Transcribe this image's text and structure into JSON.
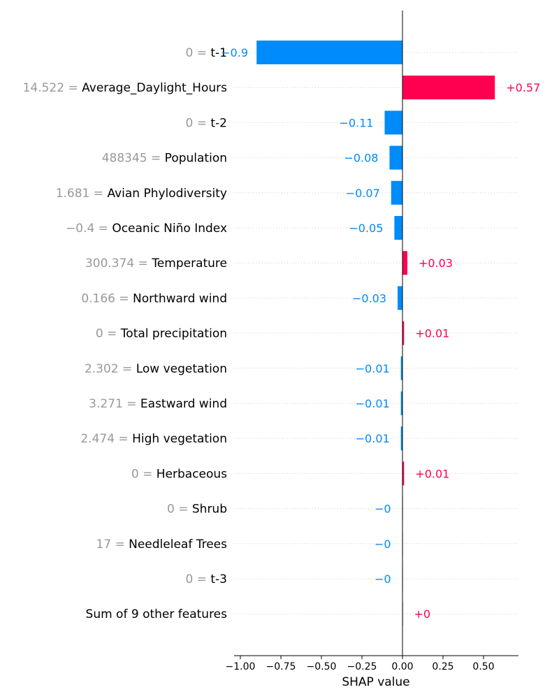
{
  "chart_data": {
    "type": "bar",
    "orientation": "horizontal",
    "xlabel": "SHAP value",
    "xlim": [
      -1.05,
      0.72
    ],
    "x_ticks": [
      -1.0,
      -0.75,
      -0.5,
      -0.25,
      0.0,
      0.25,
      0.5
    ],
    "x_tick_labels": [
      "−1.00",
      "−0.75",
      "−0.50",
      "−0.25",
      "0.00",
      "0.25",
      "0.50"
    ],
    "grid": "horizontal dotted",
    "colors": {
      "positive": "#ff0051",
      "negative": "#008bfb"
    },
    "rows": [
      {
        "feature_value": "0",
        "feature": "t-1",
        "value": -0.9,
        "label": "−0.9"
      },
      {
        "feature_value": "14.522",
        "feature": "Average_Daylight_Hours",
        "value": 0.57,
        "label": "+0.57"
      },
      {
        "feature_value": "0",
        "feature": "t-2",
        "value": -0.11,
        "label": "−0.11"
      },
      {
        "feature_value": "488345",
        "feature": "Population",
        "value": -0.08,
        "label": "−0.08"
      },
      {
        "feature_value": "1.681",
        "feature": "Avian Phylodiversity",
        "value": -0.07,
        "label": "−0.07"
      },
      {
        "feature_value": "−0.4",
        "feature": "Oceanic Niño Index",
        "value": -0.05,
        "label": "−0.05"
      },
      {
        "feature_value": "300.374",
        "feature": "Temperature",
        "value": 0.03,
        "label": "+0.03"
      },
      {
        "feature_value": "0.166",
        "feature": "Northward wind",
        "value": -0.03,
        "label": "−0.03"
      },
      {
        "feature_value": "0",
        "feature": "Total precipitation",
        "value": 0.01,
        "label": "+0.01"
      },
      {
        "feature_value": "2.302",
        "feature": "Low vegetation",
        "value": -0.01,
        "label": "−0.01"
      },
      {
        "feature_value": "3.271",
        "feature": "Eastward wind",
        "value": -0.01,
        "label": "−0.01"
      },
      {
        "feature_value": "2.474",
        "feature": "High vegetation",
        "value": -0.01,
        "label": "−0.01"
      },
      {
        "feature_value": "0",
        "feature": "Herbaceous",
        "value": 0.01,
        "label": "+0.01"
      },
      {
        "feature_value": "0",
        "feature": "Shrub",
        "value": -0.002,
        "label": "−0"
      },
      {
        "feature_value": "17",
        "feature": "Needleleaf Trees",
        "value": -0.002,
        "label": "−0"
      },
      {
        "feature_value": "0",
        "feature": "t-3",
        "value": -0.002,
        "label": "−0"
      },
      {
        "feature_value": "",
        "feature": "Sum of 9 other features",
        "value": 0.002,
        "label": "+0"
      }
    ]
  }
}
